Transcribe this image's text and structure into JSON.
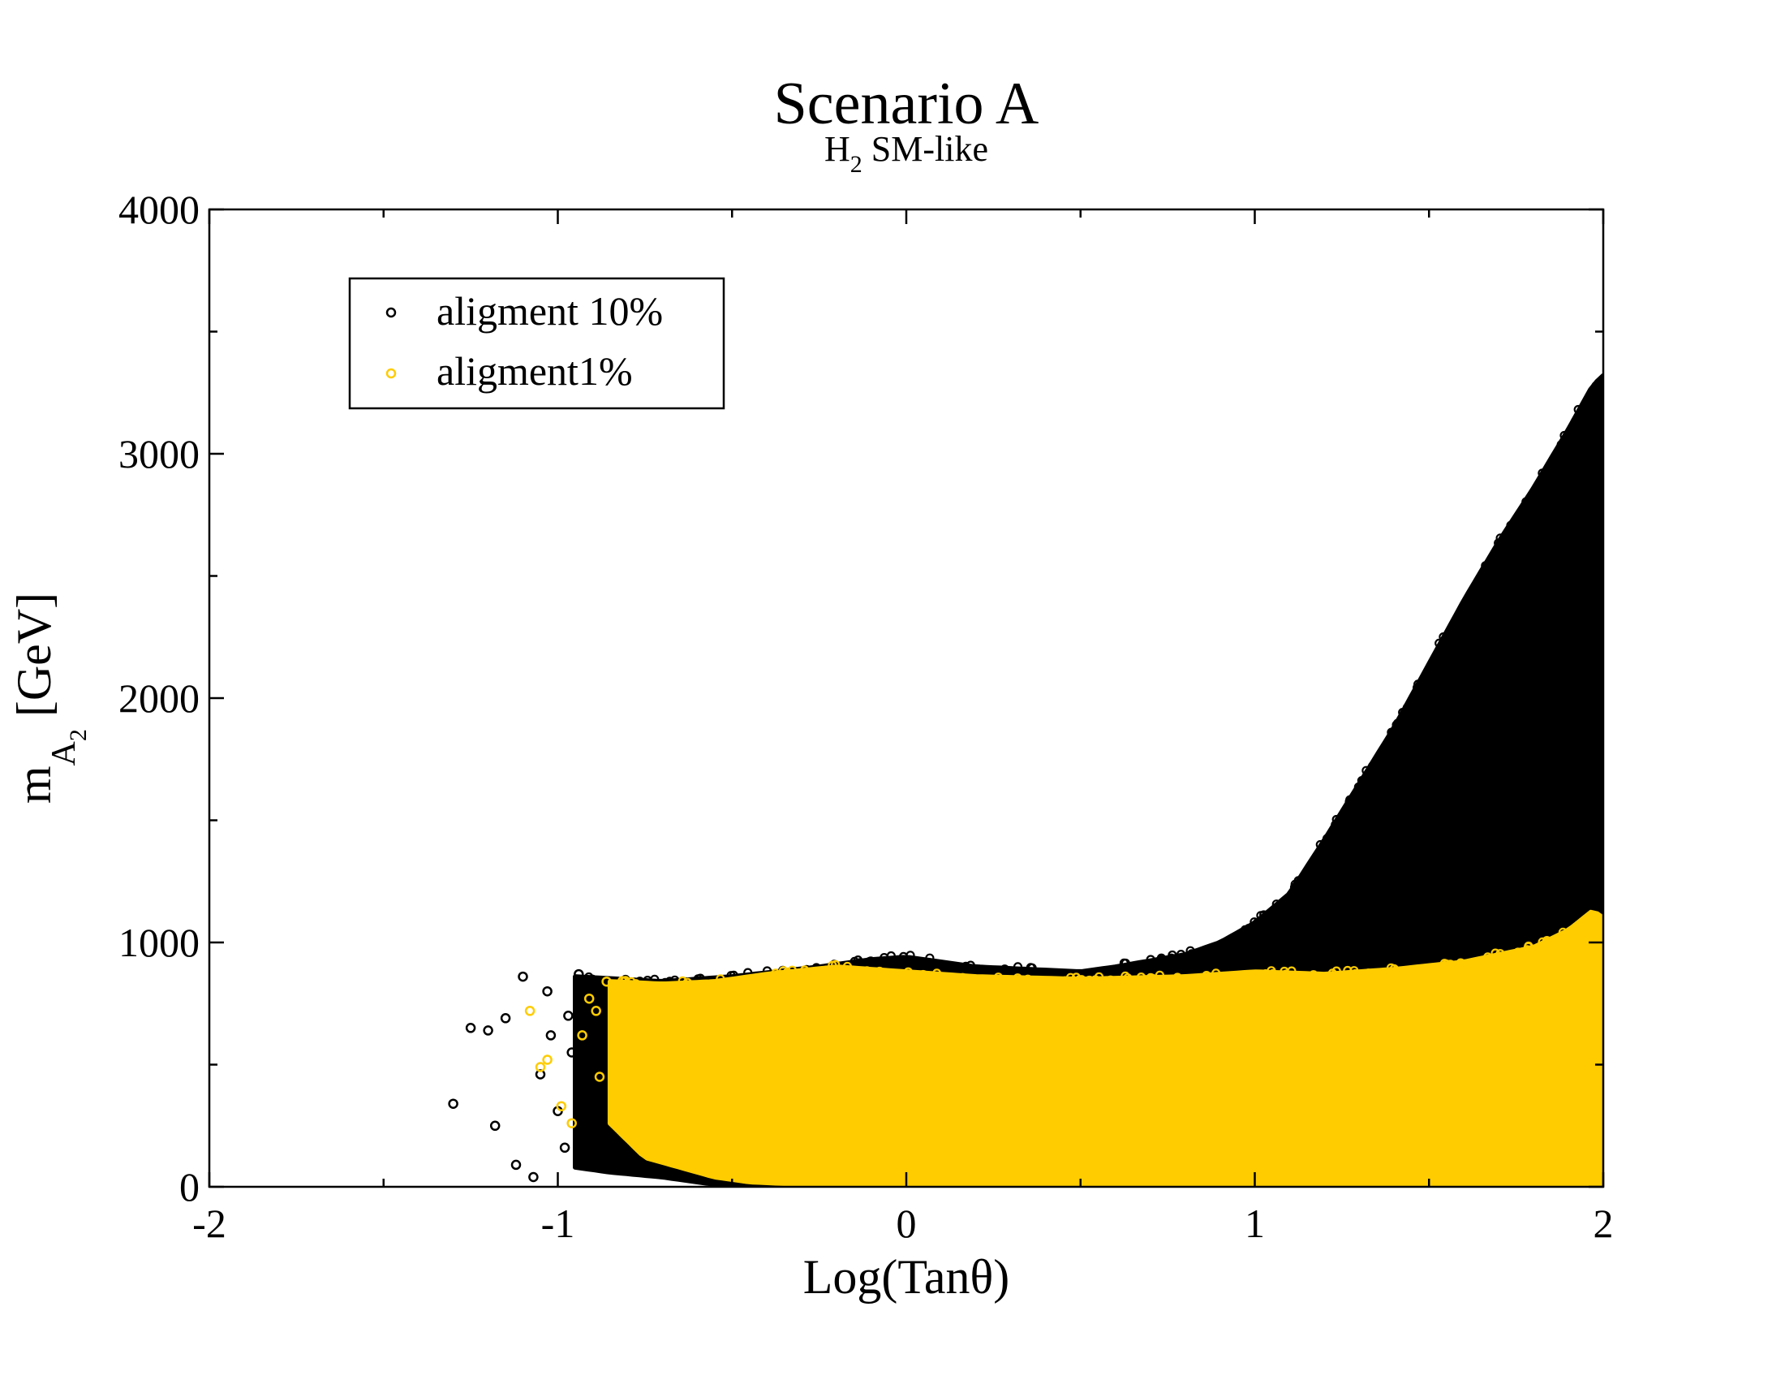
{
  "chart_data": {
    "type": "scatter",
    "title": "Scenario A",
    "subtitle": {
      "main": "H",
      "sub": "2",
      "rest": " SM-like"
    },
    "xlabel": "Log(Tanθ)",
    "ylabel": {
      "main": "m",
      "sub": "A",
      "subsub": "2",
      "rest": "[GeV]"
    },
    "xlim": [
      -2,
      2
    ],
    "ylim": [
      0,
      4000
    ],
    "x_ticks": [
      -2,
      -1,
      0,
      1,
      2
    ],
    "x_tick_labels": [
      "-2",
      "-1",
      "0",
      "1",
      "2"
    ],
    "x_minor_ticks": [
      -1.5,
      -0.5,
      0.5,
      1.5
    ],
    "y_ticks": [
      0,
      1000,
      2000,
      3000,
      4000
    ],
    "y_tick_labels": [
      "0",
      "1000",
      "2000",
      "3000",
      "4000"
    ],
    "y_minor_ticks": [
      500,
      1500,
      2500,
      3500
    ],
    "grid": false,
    "legend_position": "top-left",
    "marker": "open-circle",
    "series": [
      {
        "name": "aligment 10%",
        "color": "#000000",
        "envelope_upper": [
          [
            -0.95,
            860
          ],
          [
            -0.7,
            840
          ],
          [
            -0.5,
            860
          ],
          [
            -0.25,
            900
          ],
          [
            -0.1,
            930
          ],
          [
            0.0,
            940
          ],
          [
            0.2,
            900
          ],
          [
            0.5,
            880
          ],
          [
            0.6,
            900
          ],
          [
            0.8,
            950
          ],
          [
            0.9,
            1000
          ],
          [
            1.0,
            1080
          ],
          [
            1.1,
            1200
          ],
          [
            1.2,
            1420
          ],
          [
            1.3,
            1650
          ],
          [
            1.4,
            1880
          ],
          [
            1.5,
            2140
          ],
          [
            1.6,
            2400
          ],
          [
            1.7,
            2640
          ],
          [
            1.8,
            2860
          ],
          [
            1.9,
            3100
          ],
          [
            1.97,
            3280
          ],
          [
            2.0,
            3320
          ]
        ],
        "envelope_lower": [
          [
            -0.95,
            80
          ],
          [
            -0.85,
            60
          ],
          [
            -0.7,
            40
          ],
          [
            -0.5,
            0
          ],
          [
            0.0,
            0
          ],
          [
            1.0,
            0
          ],
          [
            2.0,
            0
          ]
        ],
        "sparse_points": [
          [
            -1.3,
            340
          ],
          [
            -1.25,
            650
          ],
          [
            -1.2,
            640
          ],
          [
            -1.15,
            690
          ],
          [
            -1.18,
            250
          ],
          [
            -1.1,
            860
          ],
          [
            -1.12,
            90
          ],
          [
            -1.07,
            40
          ],
          [
            -1.05,
            460
          ],
          [
            -1.03,
            800
          ],
          [
            -1.02,
            620
          ],
          [
            -1.0,
            310
          ],
          [
            -0.98,
            160
          ],
          [
            -0.97,
            700
          ],
          [
            -0.96,
            550
          ],
          [
            -0.94,
            870
          ],
          [
            -0.92,
            380
          ],
          [
            -0.9,
            820
          ],
          [
            -0.88,
            250
          ],
          [
            -0.87,
            90
          ]
        ]
      },
      {
        "name": "aligment1%",
        "color": "#ffcc00",
        "envelope_upper": [
          [
            -0.85,
            840
          ],
          [
            -0.7,
            830
          ],
          [
            -0.55,
            840
          ],
          [
            -0.4,
            870
          ],
          [
            -0.2,
            900
          ],
          [
            0.0,
            880
          ],
          [
            0.2,
            860
          ],
          [
            0.5,
            850
          ],
          [
            0.8,
            860
          ],
          [
            1.0,
            880
          ],
          [
            1.2,
            870
          ],
          [
            1.4,
            890
          ],
          [
            1.6,
            920
          ],
          [
            1.8,
            980
          ],
          [
            1.9,
            1050
          ],
          [
            1.97,
            1130
          ],
          [
            2.0,
            1100
          ]
        ],
        "envelope_lower": [
          [
            -0.85,
            260
          ],
          [
            -0.75,
            120
          ],
          [
            -0.65,
            80
          ],
          [
            -0.55,
            40
          ],
          [
            -0.45,
            20
          ],
          [
            -0.3,
            10
          ],
          [
            0.0,
            5
          ],
          [
            1.0,
            5
          ],
          [
            2.0,
            5
          ]
        ],
        "sparse_points": [
          [
            -1.08,
            720
          ],
          [
            -1.05,
            490
          ],
          [
            -1.03,
            520
          ],
          [
            -0.99,
            330
          ],
          [
            -0.96,
            260
          ],
          [
            -0.93,
            620
          ],
          [
            -0.91,
            770
          ],
          [
            -0.89,
            720
          ],
          [
            -0.88,
            450
          ],
          [
            -0.86,
            840
          ],
          [
            -0.84,
            560
          ],
          [
            -0.82,
            300
          ]
        ]
      }
    ]
  }
}
